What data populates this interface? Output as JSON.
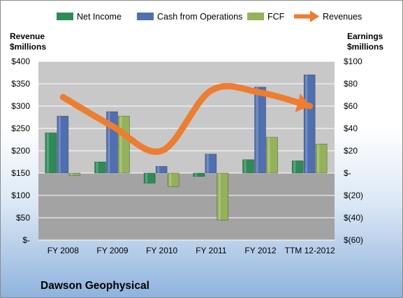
{
  "chart_data": {
    "type": "bar",
    "title": "Dawson Geophysical",
    "categories": [
      "FY 2008",
      "FY 2009",
      "FY 2010",
      "FY 2011",
      "FY 2012",
      "TTM 12-2012"
    ],
    "left_axis": {
      "label_line1": "Revenue",
      "label_line2": "$millions",
      "min": 0,
      "max": 400,
      "step": 50,
      "tick_labels": [
        "$-",
        "$50",
        "$100",
        "$150",
        "$200",
        "$250",
        "$300",
        "$350",
        "$400"
      ]
    },
    "right_axis": {
      "label_line1": "Earnings",
      "label_line2": "$millions",
      "min": -60,
      "max": 100,
      "step": 20,
      "tick_labels": [
        "$(60)",
        "$(40)",
        "$(20)",
        "$-",
        "$20",
        "$40",
        "$60",
        "$80",
        "$100"
      ]
    },
    "series": [
      {
        "name": "Net Income",
        "type": "bar",
        "axis": "right",
        "color": "#2e8b57",
        "values": [
          36,
          10,
          -9,
          -3,
          12,
          11
        ]
      },
      {
        "name": "Cash from Operations",
        "type": "bar",
        "axis": "right",
        "color": "#4f6fb0",
        "values": [
          51,
          55,
          6,
          17,
          77,
          88
        ]
      },
      {
        "name": "FCF",
        "type": "bar",
        "axis": "right",
        "color": "#93b25a",
        "values": [
          -2,
          51,
          -12,
          -42,
          32,
          26
        ]
      },
      {
        "name": "Revenues",
        "type": "line",
        "axis": "left",
        "color": "#ed7d31",
        "values": [
          320,
          255,
          200,
          335,
          330,
          300
        ]
      }
    ],
    "legend_position": "top",
    "grid": true
  },
  "colors": {
    "plot_upper": "#c8c8c8",
    "plot_lower": "#a3a3a3",
    "gridline": "#ffffff",
    "revenue_line": "#ed7d31"
  }
}
